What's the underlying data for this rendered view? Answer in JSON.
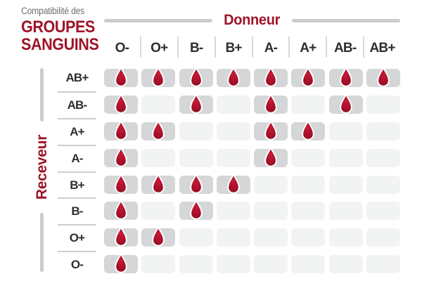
{
  "title": {
    "kicker": "Compatibilité des",
    "line1": "GROUPES",
    "line2": "SANGUINS"
  },
  "donor_axis": {
    "label": "Donneur"
  },
  "receiver_axis": {
    "label": "Receveur"
  },
  "icons": {
    "compatible_marker": "blood-drop-icon"
  },
  "colors": {
    "accent_red": "#9e1428",
    "drop_red": "#b5122f",
    "drop_red_dark": "#8c0c22",
    "cell_filled": "#d4d6d7",
    "cell_empty": "#f2f3f3",
    "rule_gray": "#c9cdcf",
    "text_dark": "#2e2e2e",
    "text_gray": "#6f7072"
  },
  "chart_data": {
    "type": "heatmap",
    "title": "Compatibilité des GROUPES SANGUINS",
    "x_axis_title": "Donneur",
    "y_axis_title": "Receveur",
    "columns": [
      "O-",
      "O+",
      "B-",
      "B+",
      "A-",
      "A+",
      "AB-",
      "AB+"
    ],
    "rows": [
      "AB+",
      "AB-",
      "A+",
      "A-",
      "B+",
      "B-",
      "O+",
      "O-"
    ],
    "cell_semantics": "1 = blood drop shown (donor compatible with receiver), 0 = empty cell",
    "matrix": [
      [
        1,
        1,
        1,
        1,
        1,
        1,
        1,
        1
      ],
      [
        1,
        0,
        1,
        0,
        1,
        0,
        1,
        0
      ],
      [
        1,
        1,
        0,
        0,
        1,
        1,
        0,
        0
      ],
      [
        1,
        0,
        0,
        0,
        1,
        0,
        0,
        0
      ],
      [
        1,
        1,
        1,
        1,
        0,
        0,
        0,
        0
      ],
      [
        1,
        0,
        1,
        0,
        0,
        0,
        0,
        0
      ],
      [
        1,
        1,
        0,
        0,
        0,
        0,
        0,
        0
      ],
      [
        1,
        0,
        0,
        0,
        0,
        0,
        0,
        0
      ]
    ]
  }
}
